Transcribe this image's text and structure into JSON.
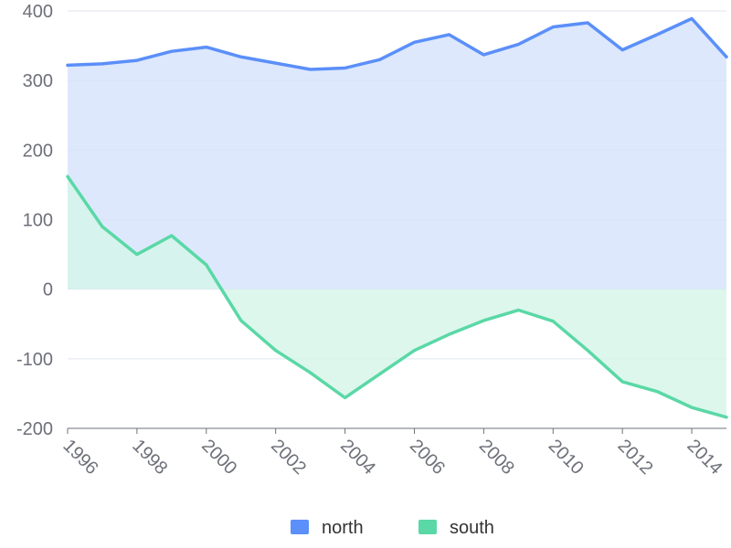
{
  "chart_data": {
    "type": "area",
    "title": "",
    "xlabel": "",
    "ylabel": "",
    "x": [
      1996,
      1997,
      1998,
      1999,
      2000,
      2001,
      2002,
      2003,
      2004,
      2005,
      2006,
      2007,
      2008,
      2009,
      2010,
      2011,
      2012,
      2013,
      2014,
      2015
    ],
    "x_tick_labels": [
      "1996",
      "1998",
      "2000",
      "2002",
      "2004",
      "2006",
      "2008",
      "2010",
      "2012",
      "2014"
    ],
    "y_ticks": [
      400,
      300,
      200,
      100,
      0,
      -100,
      -200
    ],
    "ylim": [
      -200,
      400
    ],
    "grid": true,
    "legend_position": "bottom-center",
    "series": [
      {
        "name": "north",
        "color": "#5b8ff9",
        "fill_color": "#d4e2fd",
        "values": [
          322,
          324,
          329,
          342,
          348,
          334,
          325,
          316,
          318,
          330,
          355,
          366,
          337,
          352,
          377,
          383,
          344,
          366,
          389,
          334
        ]
      },
      {
        "name": "south",
        "color": "#5ad8a6",
        "fill_color": "#d5f5e8",
        "values": [
          162,
          90,
          50,
          77,
          35,
          -45,
          -88,
          -120,
          -156,
          -122,
          -88,
          -65,
          -45,
          -30,
          -46,
          -88,
          -133,
          -147,
          -170,
          -184
        ]
      }
    ]
  }
}
